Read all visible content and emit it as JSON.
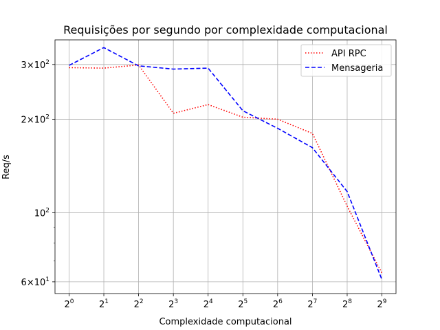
{
  "chart_data": {
    "type": "line",
    "title": "Requisições por segundo por complexidade computacional",
    "xlabel": "Complexidade computacional",
    "ylabel": "Req/s",
    "x": [
      1,
      2,
      4,
      8,
      16,
      32,
      64,
      128,
      256,
      512
    ],
    "x_tick_labels": [
      {
        "base": "2",
        "exp": "0"
      },
      {
        "base": "2",
        "exp": "1"
      },
      {
        "base": "2",
        "exp": "2"
      },
      {
        "base": "2",
        "exp": "3"
      },
      {
        "base": "2",
        "exp": "4"
      },
      {
        "base": "2",
        "exp": "5"
      },
      {
        "base": "2",
        "exp": "6"
      },
      {
        "base": "2",
        "exp": "7"
      },
      {
        "base": "2",
        "exp": "8"
      },
      {
        "base": "2",
        "exp": "9"
      }
    ],
    "y_scale": "log",
    "ylim": [
      55,
      360
    ],
    "y_ticks": [
      {
        "value": 60,
        "mantissa": "6×10",
        "exp": "1"
      },
      {
        "value": 100,
        "mantissa": "10",
        "exp": "2"
      },
      {
        "value": 200,
        "mantissa": "2×10",
        "exp": "2"
      },
      {
        "value": 300,
        "mantissa": "3×10",
        "exp": "2"
      }
    ],
    "y_minor_ticks": [
      70,
      80,
      90
    ],
    "grid": true,
    "legend_position": "top-right",
    "series": [
      {
        "name": "API RPC",
        "color": "#ff0000",
        "style": "dotted",
        "values": [
          293,
          292,
          299,
          209,
          223,
          203,
          200,
          180,
          105,
          64
        ]
      },
      {
        "name": "Mensageria",
        "color": "#0000ff",
        "style": "dashed",
        "values": [
          298,
          340,
          297,
          290,
          292,
          213,
          187,
          162,
          117,
          61
        ]
      }
    ]
  }
}
